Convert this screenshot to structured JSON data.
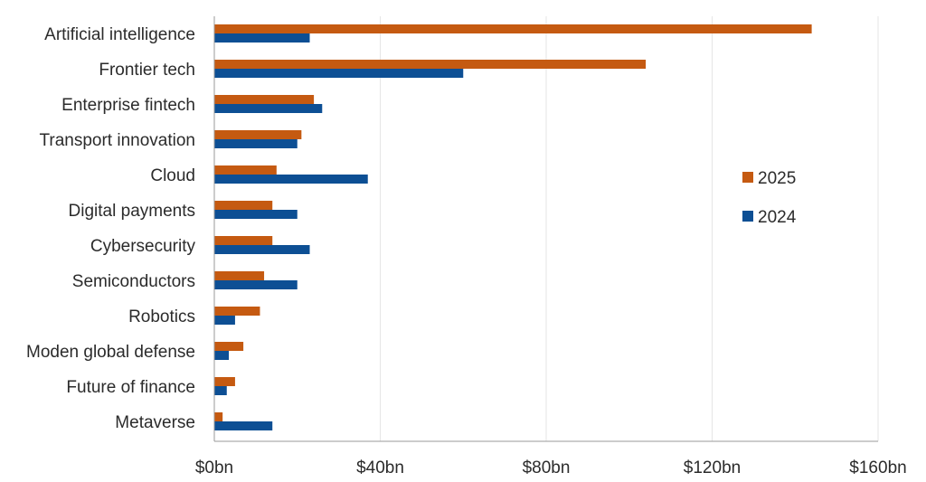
{
  "chart_data": {
    "type": "bar",
    "orientation": "horizontal",
    "categories": [
      "Artificial intelligence",
      "Frontier tech",
      "Enterprise fintech",
      "Transport innovation",
      "Cloud",
      "Digital payments",
      "Cybersecurity",
      "Semiconductors",
      "Robotics",
      "Moden global defense",
      "Future of finance",
      "Metaverse"
    ],
    "series": [
      {
        "name": "2025",
        "color": "#c55a11",
        "values": [
          144,
          104,
          24,
          21,
          15,
          14,
          14,
          12,
          11,
          7,
          5,
          2
        ]
      },
      {
        "name": "2024",
        "color": "#0d4f94",
        "values": [
          23,
          60,
          26,
          20,
          37,
          20,
          23,
          20,
          5,
          3.5,
          3,
          14
        ]
      }
    ],
    "xlim": [
      0,
      160
    ],
    "xticks": [
      0,
      40,
      80,
      120,
      160
    ],
    "xtick_labels": [
      "$0bn",
      "$40bn",
      "$80bn",
      "$120bn",
      "$160bn"
    ],
    "grid": true,
    "legend_position": "right"
  }
}
